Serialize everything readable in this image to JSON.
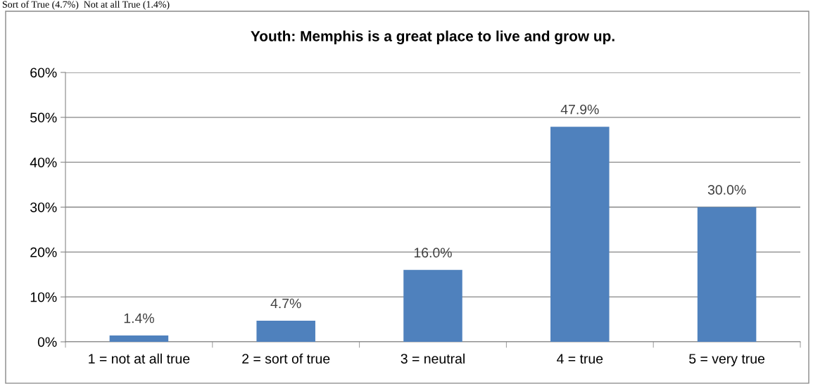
{
  "chart_data": {
    "type": "bar",
    "title": "Youth: Memphis is a great place to live and grow up.",
    "annotations": [
      "Sort of True (4.7%)  Not at all True (1.4%)"
    ],
    "categories": [
      "1 = not at all true",
      "2 = sort of true",
      "3 = neutral",
      "4 = true",
      "5 = very true"
    ],
    "values": [
      1.4,
      4.7,
      16.0,
      47.9,
      30.0
    ],
    "value_labels": [
      "1.4%",
      "4.7%",
      "16.0%",
      "47.9%",
      "30.0%"
    ],
    "color": "#4f81bd",
    "ylim": [
      0,
      60
    ],
    "yticks": [
      {
        "value": 0,
        "label": "0%"
      },
      {
        "value": 10,
        "label": "10%"
      },
      {
        "value": 20,
        "label": "20%"
      },
      {
        "value": 30,
        "label": "30%"
      },
      {
        "value": 40,
        "label": "40%"
      },
      {
        "value": 50,
        "label": "50%"
      },
      {
        "value": 60,
        "label": "60%"
      }
    ],
    "grid": "y",
    "legend": false
  }
}
